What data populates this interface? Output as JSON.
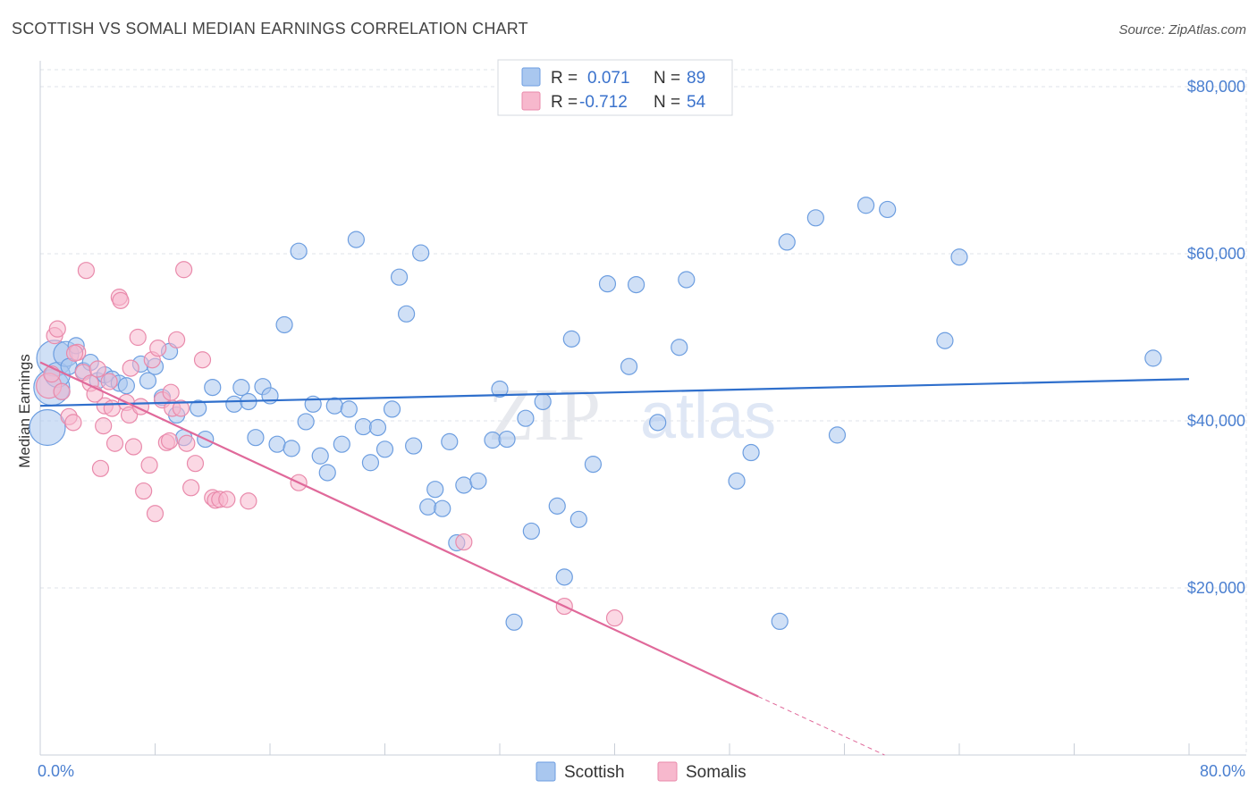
{
  "title": "SCOTTISH VS SOMALI MEDIAN EARNINGS CORRELATION CHART",
  "source": "Source: ZipAtlas.com",
  "watermark": {
    "zip": "ZIP",
    "atlas": "atlas"
  },
  "colors": {
    "scottish_fill": "#a9c7ef",
    "scottish_stroke": "#6d9ee0",
    "scottish_line": "#2f6fcc",
    "somali_fill": "#f7b8cd",
    "somali_stroke": "#e98aab",
    "somali_line": "#e0699a"
  },
  "legend": {
    "rows": [
      {
        "r_label": "R =",
        "r_value": "0.071",
        "n_label": "N =",
        "n_value": "89"
      },
      {
        "r_label": "R =",
        "r_value": "-0.712",
        "n_label": "N =",
        "n_value": "54"
      }
    ]
  },
  "bottom_legend": [
    "Scottish",
    "Somalis"
  ],
  "chart_data": {
    "type": "scatter",
    "title": "SCOTTISH VS SOMALI MEDIAN EARNINGS CORRELATION CHART",
    "xlabel": "",
    "ylabel": "Median Earnings",
    "xlim": [
      0,
      80
    ],
    "ylim": [
      0,
      85000
    ],
    "x_tick_labels": [
      "0.0%",
      "80.0%"
    ],
    "y_ticks": [
      20000,
      40000,
      60000,
      80000
    ],
    "y_tick_labels": [
      "$20,000",
      "$40,000",
      "$60,000",
      "$80,000"
    ],
    "series": [
      {
        "name": "Scottish",
        "trend": {
          "x0": 0,
          "y0": 41800,
          "x1": 80,
          "y1": 45000
        },
        "points": [
          [
            0.5,
            39200,
            3
          ],
          [
            0.8,
            44000,
            3
          ],
          [
            1.0,
            47500,
            3
          ],
          [
            1.2,
            45500,
            2
          ],
          [
            1.5,
            43500,
            1
          ],
          [
            1.8,
            48000,
            2
          ],
          [
            2.0,
            46500,
            1
          ],
          [
            2.5,
            49000,
            1
          ],
          [
            3.0,
            46000,
            1
          ],
          [
            3.5,
            47000,
            1
          ],
          [
            4.0,
            44800,
            1
          ],
          [
            4.5,
            45500,
            1
          ],
          [
            5.0,
            45000,
            1
          ],
          [
            5.5,
            44500,
            1
          ],
          [
            6.0,
            44200,
            1
          ],
          [
            7.0,
            46800,
            1
          ],
          [
            7.5,
            44800,
            1
          ],
          [
            8.0,
            46500,
            1
          ],
          [
            8.5,
            42800,
            1
          ],
          [
            9.0,
            48300,
            1
          ],
          [
            9.5,
            40700,
            1
          ],
          [
            10.0,
            38000,
            1
          ],
          [
            11.0,
            41500,
            1
          ],
          [
            11.5,
            37800,
            1
          ],
          [
            12.0,
            44000,
            1
          ],
          [
            13.5,
            42000,
            1
          ],
          [
            14.0,
            44000,
            1
          ],
          [
            14.5,
            42300,
            1
          ],
          [
            15.0,
            38000,
            1
          ],
          [
            15.5,
            44100,
            1
          ],
          [
            16.0,
            43000,
            1
          ],
          [
            16.5,
            37200,
            1
          ],
          [
            17.0,
            51500,
            1
          ],
          [
            17.5,
            36700,
            1
          ],
          [
            18.0,
            60300,
            1
          ],
          [
            18.5,
            39900,
            1
          ],
          [
            19.0,
            42000,
            1
          ],
          [
            19.5,
            35800,
            1
          ],
          [
            20.0,
            33800,
            1
          ],
          [
            20.5,
            41800,
            1
          ],
          [
            21.0,
            37200,
            1
          ],
          [
            21.5,
            41400,
            1
          ],
          [
            22.0,
            61700,
            1
          ],
          [
            22.5,
            39300,
            1
          ],
          [
            23.0,
            35000,
            1
          ],
          [
            23.5,
            39200,
            1
          ],
          [
            24.0,
            36600,
            1
          ],
          [
            24.5,
            41400,
            1
          ],
          [
            25.0,
            57200,
            1
          ],
          [
            25.5,
            52800,
            1
          ],
          [
            26.0,
            37000,
            1
          ],
          [
            26.5,
            60100,
            1
          ],
          [
            27.0,
            29700,
            1
          ],
          [
            27.5,
            31800,
            1
          ],
          [
            28.0,
            29500,
            1
          ],
          [
            28.5,
            37500,
            1
          ],
          [
            29.0,
            25400,
            1
          ],
          [
            29.5,
            32300,
            1
          ],
          [
            30.5,
            32800,
            1
          ],
          [
            31.5,
            37700,
            1
          ],
          [
            32.0,
            43800,
            1
          ],
          [
            32.5,
            37800,
            1
          ],
          [
            33.0,
            15900,
            1
          ],
          [
            33.8,
            40300,
            1
          ],
          [
            34.2,
            26800,
            1
          ],
          [
            35.0,
            42300,
            1
          ],
          [
            36.0,
            29800,
            1
          ],
          [
            36.5,
            21300,
            1
          ],
          [
            37.0,
            49800,
            1
          ],
          [
            37.5,
            28200,
            1
          ],
          [
            38.5,
            34800,
            1
          ],
          [
            39.5,
            56400,
            1
          ],
          [
            41.0,
            46500,
            1
          ],
          [
            41.5,
            56300,
            1
          ],
          [
            43.0,
            39800,
            1
          ],
          [
            44.5,
            48800,
            1
          ],
          [
            45.0,
            56900,
            1
          ],
          [
            48.5,
            32800,
            1
          ],
          [
            49.5,
            36200,
            1
          ],
          [
            51.5,
            16000,
            1
          ],
          [
            52.0,
            61400,
            1
          ],
          [
            54.0,
            64300,
            1
          ],
          [
            55.5,
            38300,
            1
          ],
          [
            57.5,
            65800,
            1
          ],
          [
            59.0,
            65300,
            1
          ],
          [
            63.0,
            49600,
            1
          ],
          [
            64.0,
            59600,
            1
          ],
          [
            77.5,
            47500,
            1
          ]
        ]
      },
      {
        "name": "Somalis",
        "trend": {
          "x0": 0,
          "y0": 47000,
          "x1": 50,
          "y1": 7000
        },
        "trend_dashed": {
          "x0": 50,
          "y0": 7000,
          "x1": 58.8,
          "y1": 0
        },
        "points": [
          [
            0.6,
            44200,
            2
          ],
          [
            0.8,
            45600,
            1
          ],
          [
            1.0,
            50200,
            1
          ],
          [
            1.2,
            51000,
            1
          ],
          [
            1.5,
            43500,
            1
          ],
          [
            2.0,
            40500,
            1
          ],
          [
            2.3,
            39800,
            1
          ],
          [
            2.6,
            48200,
            1
          ],
          [
            3.0,
            45800,
            1
          ],
          [
            3.2,
            58000,
            1
          ],
          [
            3.5,
            44500,
            1
          ],
          [
            4.0,
            46200,
            1
          ],
          [
            4.2,
            34300,
            1
          ],
          [
            4.5,
            41800,
            1
          ],
          [
            4.8,
            44700,
            1
          ],
          [
            5.0,
            41500,
            1
          ],
          [
            5.2,
            37300,
            1
          ],
          [
            5.5,
            54800,
            1
          ],
          [
            5.6,
            54400,
            1
          ],
          [
            6.0,
            42200,
            1
          ],
          [
            6.2,
            40700,
            1
          ],
          [
            6.5,
            36900,
            1
          ],
          [
            6.8,
            50000,
            1
          ],
          [
            7.0,
            41700,
            1
          ],
          [
            7.2,
            31600,
            1
          ],
          [
            7.6,
            34700,
            1
          ],
          [
            7.8,
            47300,
            1
          ],
          [
            8.0,
            28900,
            1
          ],
          [
            8.2,
            48700,
            1
          ],
          [
            8.5,
            42500,
            1
          ],
          [
            8.8,
            37400,
            1
          ],
          [
            9.0,
            37600,
            1
          ],
          [
            9.2,
            41500,
            1
          ],
          [
            9.5,
            49700,
            1
          ],
          [
            9.8,
            41500,
            1
          ],
          [
            10.0,
            58100,
            1
          ],
          [
            10.2,
            37300,
            1
          ],
          [
            10.5,
            32000,
            1
          ],
          [
            10.8,
            34900,
            1
          ],
          [
            11.3,
            47300,
            1
          ],
          [
            12.0,
            30800,
            1
          ],
          [
            12.2,
            30500,
            1
          ],
          [
            12.5,
            30600,
            1
          ],
          [
            13.0,
            30600,
            1
          ],
          [
            14.5,
            30400,
            1
          ],
          [
            18.0,
            32600,
            1
          ],
          [
            29.5,
            25500,
            1
          ],
          [
            36.5,
            17800,
            1
          ],
          [
            40.0,
            16400,
            1
          ],
          [
            2.4,
            48100,
            1
          ],
          [
            3.8,
            43200,
            1
          ],
          [
            6.3,
            46300,
            1
          ],
          [
            9.1,
            43400,
            1
          ],
          [
            4.4,
            39400,
            1
          ]
        ]
      }
    ]
  }
}
